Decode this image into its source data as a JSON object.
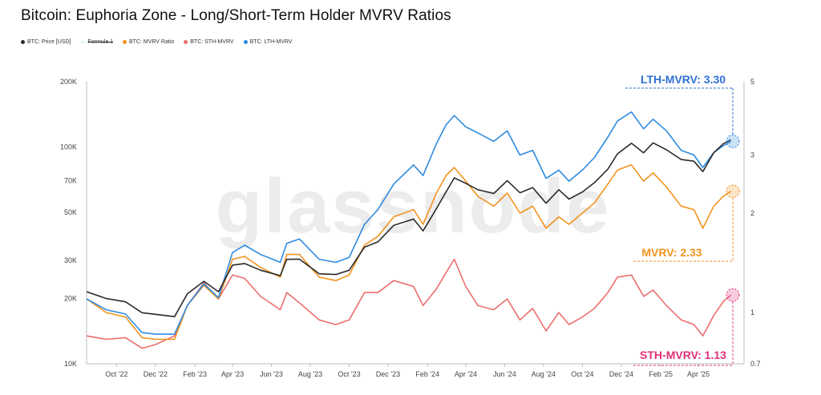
{
  "title": "Bitcoin: Euphoria Zone - Long/Short-Term Holder MVRV Ratios",
  "legend": [
    {
      "label": "BTC: Price [USD]",
      "color": "#2b2b2b",
      "kind": "dot",
      "strike": false
    },
    {
      "label": "Formula 1",
      "color": "#bfe3f0",
      "kind": "line",
      "strike": true
    },
    {
      "label": "BTC: MVRV Ratio",
      "color": "#f2931f",
      "kind": "dot",
      "strike": false
    },
    {
      "label": "BTC: STH-MVRV",
      "color": "#ec6e6e",
      "kind": "dot",
      "strike": false
    },
    {
      "label": "BTC: LTH-MVRV",
      "color": "#2f8be0",
      "kind": "dot",
      "strike": false
    }
  ],
  "watermark": "glassnode",
  "annotations": {
    "lth": "LTH-MVRV: 3.30",
    "mvrv": "MVRV: 2.33",
    "sth": "STH-MVRV: 1.13"
  },
  "colors": {
    "price": "#2b2b2b",
    "mvrv": "#f2931f",
    "sth": "#ec6e6e",
    "lth": "#2f8be0",
    "lth_label": "#2f6fd6",
    "sth_label": "#e0307a",
    "formula": "#bfe3f0"
  },
  "chart_data": {
    "type": "line",
    "title": "Bitcoin: Euphoria Zone - Long/Short-Term Holder MVRV Ratios",
    "y_left": {
      "scale": "log",
      "range": [
        10000,
        200000
      ],
      "ticks": [
        10000,
        20000,
        30000,
        50000,
        70000,
        100000,
        200000
      ],
      "tick_labels": [
        "10K",
        "20K",
        "30K",
        "50K",
        "70K",
        "100K",
        "200K"
      ]
    },
    "y_right": {
      "scale": "log",
      "range": [
        0.7,
        5
      ],
      "ticks": [
        0.7,
        1,
        2,
        3,
        5
      ],
      "tick_labels": [
        "0.7",
        "1",
        "2",
        "3",
        "5"
      ]
    },
    "x_tick_labels": [
      "Oct '22",
      "Dec '22",
      "Feb '23",
      "Apr '23",
      "Jun '23",
      "Aug '23",
      "Oct '23",
      "Dec '23",
      "Feb '24",
      "Apr '24",
      "Jun '24",
      "Aug '24",
      "Oct '24",
      "Dec '24",
      "Feb '25",
      "Apr '25"
    ],
    "x_ticks": [
      "2022-10-01",
      "2022-12-01",
      "2023-02-01",
      "2023-04-01",
      "2023-06-01",
      "2023-08-01",
      "2023-10-01",
      "2023-12-01",
      "2024-02-01",
      "2024-04-01",
      "2024-06-01",
      "2024-08-01",
      "2024-10-01",
      "2024-12-01",
      "2025-02-01",
      "2025-04-01"
    ],
    "x_range": [
      "2022-08-15",
      "2025-05-25"
    ],
    "grid": false,
    "legend_position": "top-left",
    "x": [
      "2022-08-15",
      "2022-09-15",
      "2022-10-15",
      "2022-11-10",
      "2022-12-01",
      "2022-12-31",
      "2023-01-20",
      "2023-02-15",
      "2023-03-10",
      "2023-04-01",
      "2023-04-20",
      "2023-05-15",
      "2023-06-15",
      "2023-06-25",
      "2023-07-15",
      "2023-08-15",
      "2023-09-10",
      "2023-10-01",
      "2023-10-25",
      "2023-11-15",
      "2023-12-10",
      "2024-01-10",
      "2024-01-25",
      "2024-02-15",
      "2024-03-01",
      "2024-03-14",
      "2024-04-01",
      "2024-04-20",
      "2024-05-15",
      "2024-06-05",
      "2024-06-25",
      "2024-07-15",
      "2024-08-05",
      "2024-08-25",
      "2024-09-10",
      "2024-10-01",
      "2024-10-20",
      "2024-11-10",
      "2024-11-25",
      "2024-12-17",
      "2025-01-05",
      "2025-01-20",
      "2025-02-10",
      "2025-03-05",
      "2025-03-25",
      "2025-04-08",
      "2025-04-25",
      "2025-05-10",
      "2025-05-22"
    ],
    "series": [
      {
        "name": "BTC: Price [USD]",
        "axis": "left",
        "values": [
          21500,
          20000,
          19300,
          17200,
          16900,
          16500,
          21000,
          24000,
          21500,
          28500,
          29000,
          27000,
          25500,
          30300,
          30400,
          26000,
          25800,
          27000,
          34500,
          36500,
          43500,
          46500,
          41000,
          52000,
          62000,
          72000,
          68000,
          63500,
          61000,
          70000,
          61500,
          65000,
          55000,
          63500,
          57500,
          62000,
          68500,
          79000,
          93000,
          104000,
          94000,
          104500,
          97000,
          87500,
          86000,
          77000,
          94000,
          103500,
          108000
        ]
      },
      {
        "name": "BTC: MVRV Ratio",
        "axis": "right",
        "values": [
          1.1,
          1.0,
          0.97,
          0.84,
          0.83,
          0.83,
          1.05,
          1.21,
          1.1,
          1.45,
          1.48,
          1.37,
          1.28,
          1.5,
          1.5,
          1.28,
          1.25,
          1.3,
          1.6,
          1.7,
          1.95,
          2.05,
          1.85,
          2.3,
          2.6,
          2.75,
          2.5,
          2.25,
          2.1,
          2.3,
          2.0,
          2.1,
          1.8,
          1.95,
          1.85,
          2.0,
          2.15,
          2.45,
          2.7,
          2.8,
          2.5,
          2.65,
          2.4,
          2.1,
          2.05,
          1.8,
          2.1,
          2.25,
          2.33
        ]
      },
      {
        "name": "BTC: STH-MVRV",
        "axis": "right",
        "values": [
          0.85,
          0.83,
          0.84,
          0.78,
          0.8,
          0.85,
          1.05,
          1.23,
          1.1,
          1.3,
          1.27,
          1.12,
          1.02,
          1.15,
          1.07,
          0.95,
          0.92,
          0.95,
          1.15,
          1.15,
          1.25,
          1.2,
          1.05,
          1.18,
          1.32,
          1.45,
          1.2,
          1.05,
          1.02,
          1.1,
          0.95,
          1.03,
          0.88,
          1.0,
          0.92,
          0.97,
          1.03,
          1.15,
          1.28,
          1.3,
          1.12,
          1.17,
          1.05,
          0.95,
          0.92,
          0.85,
          0.98,
          1.08,
          1.13
        ]
      },
      {
        "name": "BTC: LTH-MVRV",
        "axis": "right",
        "values": [
          1.1,
          1.02,
          0.99,
          0.87,
          0.86,
          0.86,
          1.05,
          1.22,
          1.11,
          1.52,
          1.6,
          1.5,
          1.42,
          1.62,
          1.67,
          1.45,
          1.42,
          1.47,
          1.85,
          2.05,
          2.45,
          2.8,
          2.6,
          3.25,
          3.7,
          3.95,
          3.65,
          3.5,
          3.3,
          3.55,
          3.0,
          3.1,
          2.55,
          2.7,
          2.5,
          2.7,
          2.95,
          3.4,
          3.8,
          4.05,
          3.6,
          3.85,
          3.55,
          3.1,
          3.0,
          2.75,
          3.05,
          3.2,
          3.3
        ]
      }
    ]
  }
}
